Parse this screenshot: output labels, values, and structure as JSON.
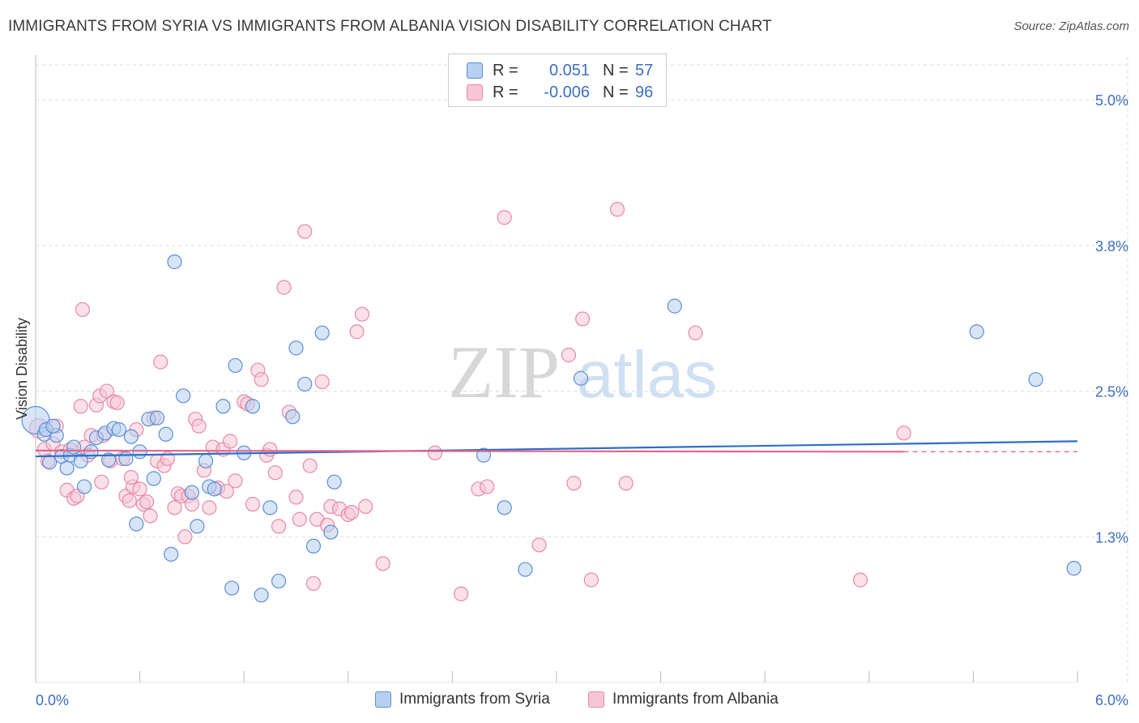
{
  "title": "IMMIGRANTS FROM SYRIA VS IMMIGRANTS FROM ALBANIA VISION DISABILITY CORRELATION CHART",
  "source": "Source: ZipAtlas.com",
  "watermark": {
    "zip": "ZIP",
    "atlas": "atlas"
  },
  "legend": {
    "rows": [
      {
        "r_label": "R =",
        "r_value": "0.051",
        "n_label": "N =",
        "n_value": "57"
      },
      {
        "r_label": "R =",
        "r_value": "-0.006",
        "n_label": "N =",
        "n_value": "96"
      }
    ]
  },
  "bottom_legend": {
    "syria": "Immigrants from Syria",
    "albania": "Immigrants from Albania"
  },
  "colors": {
    "syria_fill": "#b8d0f0",
    "syria_stroke": "#5b8fd6",
    "syria_line": "#2f6ec9",
    "albania_fill": "#f7c6d6",
    "albania_stroke": "#e58aa8",
    "albania_line": "#e0688f",
    "axis_text": "#3d6fc1",
    "grid": "#dddddd"
  },
  "chart_data": {
    "type": "scatter",
    "title": "IMMIGRANTS FROM SYRIA VS IMMIGRANTS FROM ALBANIA VISION DISABILITY CORRELATION CHART",
    "xlabel": "",
    "ylabel": "Vision Disability",
    "xlim": [
      0.0,
      6.0
    ],
    "ylim": [
      0.0,
      5.3
    ],
    "x_tick_labels": [
      {
        "value": 0.0,
        "label": "0.0%"
      },
      {
        "value": 6.0,
        "label": "6.0%"
      }
    ],
    "y_tick_labels": [
      {
        "value": 1.25,
        "label": "1.3%"
      },
      {
        "value": 2.5,
        "label": "2.5%"
      },
      {
        "value": 3.75,
        "label": "3.8%"
      },
      {
        "value": 5.0,
        "label": "5.0%"
      }
    ],
    "grid": true,
    "legend_position": "top-center",
    "series": [
      {
        "name": "Immigrants from Syria",
        "trend": {
          "x": [
            0.0,
            6.0
          ],
          "y": [
            1.94,
            2.07
          ]
        },
        "points": [
          [
            0.0,
            2.25,
            2.0
          ],
          [
            0.05,
            2.13,
            1.0
          ],
          [
            0.08,
            1.89,
            1.0
          ],
          [
            0.12,
            2.12,
            1.0
          ],
          [
            0.15,
            1.94,
            1.0
          ],
          [
            0.18,
            1.84,
            1.0
          ],
          [
            0.2,
            1.95,
            1.0
          ],
          [
            0.22,
            2.02,
            1.0
          ],
          [
            0.26,
            1.9,
            1.0
          ],
          [
            0.28,
            1.68,
            1.0
          ],
          [
            0.32,
            1.98,
            1.0
          ],
          [
            0.35,
            2.1,
            1.0
          ],
          [
            0.4,
            2.14,
            1.0
          ],
          [
            0.42,
            1.91,
            1.0
          ],
          [
            0.45,
            2.18,
            1.0
          ],
          [
            0.48,
            2.17,
            1.0
          ],
          [
            0.52,
            1.92,
            1.0
          ],
          [
            0.55,
            2.11,
            1.0
          ],
          [
            0.58,
            1.36,
            1.0
          ],
          [
            0.6,
            1.98,
            1.0
          ],
          [
            0.65,
            2.26,
            1.0
          ],
          [
            0.68,
            1.75,
            1.0
          ],
          [
            0.7,
            2.27,
            1.0
          ],
          [
            0.75,
            2.13,
            1.0
          ],
          [
            0.78,
            1.1,
            1.0
          ],
          [
            0.8,
            3.61,
            1.0
          ],
          [
            0.85,
            2.46,
            1.0
          ],
          [
            0.9,
            1.63,
            1.0
          ],
          [
            0.93,
            1.34,
            1.0
          ],
          [
            0.98,
            1.9,
            1.0
          ],
          [
            1.0,
            1.68,
            1.0
          ],
          [
            1.03,
            1.66,
            1.0
          ],
          [
            1.08,
            2.37,
            1.0
          ],
          [
            1.13,
            0.81,
            1.0
          ],
          [
            1.15,
            2.72,
            1.0
          ],
          [
            1.2,
            1.97,
            1.0
          ],
          [
            1.25,
            2.37,
            1.0
          ],
          [
            1.3,
            0.75,
            1.0
          ],
          [
            1.35,
            1.5,
            1.0
          ],
          [
            1.4,
            0.87,
            1.0
          ],
          [
            1.48,
            2.28,
            1.0
          ],
          [
            1.5,
            2.87,
            1.0
          ],
          [
            1.55,
            2.56,
            1.0
          ],
          [
            1.6,
            1.17,
            1.0
          ],
          [
            1.65,
            3.0,
            1.0
          ],
          [
            1.7,
            1.29,
            1.0
          ],
          [
            1.72,
            1.72,
            1.0
          ],
          [
            2.58,
            1.95,
            1.0
          ],
          [
            2.7,
            1.5,
            1.0
          ],
          [
            2.82,
            0.97,
            1.0
          ],
          [
            3.14,
            2.61,
            1.0
          ],
          [
            3.68,
            3.23,
            1.0
          ],
          [
            5.42,
            3.01,
            1.0
          ],
          [
            5.76,
            2.6,
            1.0
          ],
          [
            5.98,
            0.98,
            1.0
          ],
          [
            0.06,
            2.17,
            1.0
          ],
          [
            0.1,
            2.2,
            1.0
          ]
        ]
      },
      {
        "name": "Immigrants from Albania",
        "trend": {
          "x": [
            0.0,
            5.0
          ],
          "y": [
            1.99,
            1.98
          ]
        },
        "trend_dashed": {
          "x": [
            5.0,
            6.0
          ],
          "y": [
            1.98,
            1.98
          ]
        },
        "points": [
          [
            0.02,
            2.18,
            1.4
          ],
          [
            0.05,
            2.0,
            1.0
          ],
          [
            0.07,
            1.9,
            1.0
          ],
          [
            0.1,
            2.05,
            1.0
          ],
          [
            0.12,
            2.2,
            1.0
          ],
          [
            0.15,
            1.98,
            1.0
          ],
          [
            0.18,
            1.65,
            1.0
          ],
          [
            0.2,
            2.0,
            1.0
          ],
          [
            0.22,
            1.58,
            1.0
          ],
          [
            0.24,
            1.6,
            1.0
          ],
          [
            0.26,
            2.37,
            1.0
          ],
          [
            0.28,
            2.02,
            1.0
          ],
          [
            0.3,
            1.95,
            1.0
          ],
          [
            0.32,
            2.12,
            1.0
          ],
          [
            0.35,
            2.38,
            1.0
          ],
          [
            0.37,
            2.46,
            1.0
          ],
          [
            0.39,
            2.12,
            1.0
          ],
          [
            0.41,
            2.5,
            1.0
          ],
          [
            0.43,
            1.9,
            1.0
          ],
          [
            0.45,
            2.41,
            1.0
          ],
          [
            0.47,
            2.4,
            1.0
          ],
          [
            0.5,
            1.92,
            1.0
          ],
          [
            0.52,
            1.6,
            1.0
          ],
          [
            0.54,
            1.56,
            1.0
          ],
          [
            0.56,
            1.68,
            1.0
          ],
          [
            0.58,
            2.17,
            1.0
          ],
          [
            0.6,
            1.66,
            1.0
          ],
          [
            0.62,
            1.53,
            1.0
          ],
          [
            0.64,
            1.55,
            1.0
          ],
          [
            0.66,
            1.43,
            1.0
          ],
          [
            0.68,
            2.27,
            1.0
          ],
          [
            0.7,
            1.9,
            1.0
          ],
          [
            0.72,
            2.75,
            1.0
          ],
          [
            0.74,
            1.86,
            1.0
          ],
          [
            0.76,
            1.92,
            1.0
          ],
          [
            0.8,
            1.5,
            1.0
          ],
          [
            0.82,
            1.62,
            1.0
          ],
          [
            0.84,
            1.6,
            1.0
          ],
          [
            0.86,
            1.25,
            1.0
          ],
          [
            0.88,
            1.6,
            1.0
          ],
          [
            0.9,
            1.53,
            1.0
          ],
          [
            0.92,
            2.26,
            1.0
          ],
          [
            0.94,
            2.2,
            1.0
          ],
          [
            0.97,
            1.82,
            1.0
          ],
          [
            1.0,
            1.5,
            1.0
          ],
          [
            1.02,
            2.02,
            1.0
          ],
          [
            1.05,
            1.67,
            1.0
          ],
          [
            1.08,
            2.0,
            1.0
          ],
          [
            1.1,
            1.64,
            1.0
          ],
          [
            1.12,
            2.07,
            1.0
          ],
          [
            1.15,
            1.73,
            1.0
          ],
          [
            1.2,
            2.41,
            1.0
          ],
          [
            1.22,
            2.39,
            1.0
          ],
          [
            1.25,
            1.53,
            1.0
          ],
          [
            1.28,
            2.68,
            1.0
          ],
          [
            1.3,
            2.6,
            1.0
          ],
          [
            1.33,
            1.95,
            1.0
          ],
          [
            1.35,
            2.0,
            1.0
          ],
          [
            1.38,
            1.8,
            1.0
          ],
          [
            1.4,
            1.34,
            1.0
          ],
          [
            1.43,
            3.39,
            1.0
          ],
          [
            1.46,
            2.32,
            1.0
          ],
          [
            1.5,
            1.59,
            1.0
          ],
          [
            1.52,
            1.4,
            1.0
          ],
          [
            1.55,
            3.87,
            1.0
          ],
          [
            1.58,
            1.86,
            1.0
          ],
          [
            1.6,
            0.85,
            1.0
          ],
          [
            1.62,
            1.4,
            1.0
          ],
          [
            1.65,
            2.58,
            1.0
          ],
          [
            1.68,
            1.35,
            1.0
          ],
          [
            1.7,
            1.51,
            1.0
          ],
          [
            1.75,
            1.49,
            1.0
          ],
          [
            1.8,
            1.44,
            1.0
          ],
          [
            1.82,
            1.46,
            1.0
          ],
          [
            1.85,
            3.01,
            1.0
          ],
          [
            1.88,
            3.16,
            1.0
          ],
          [
            1.9,
            1.51,
            1.0
          ],
          [
            2.0,
            1.02,
            1.0
          ],
          [
            2.3,
            1.97,
            1.0
          ],
          [
            2.45,
            0.76,
            1.0
          ],
          [
            2.55,
            1.66,
            1.0
          ],
          [
            2.6,
            1.68,
            1.0
          ],
          [
            2.7,
            3.99,
            1.0
          ],
          [
            2.9,
            1.18,
            1.0
          ],
          [
            3.07,
            2.81,
            1.0
          ],
          [
            3.1,
            1.71,
            1.0
          ],
          [
            3.15,
            3.12,
            1.0
          ],
          [
            3.2,
            0.88,
            1.0
          ],
          [
            3.35,
            4.06,
            1.0
          ],
          [
            3.4,
            1.71,
            1.0
          ],
          [
            3.8,
            3.0,
            1.0
          ],
          [
            4.75,
            0.88,
            1.0
          ],
          [
            5.0,
            2.14,
            1.0
          ],
          [
            0.38,
            1.72,
            1.0
          ],
          [
            0.27,
            3.2,
            1.0
          ],
          [
            0.55,
            1.76,
            1.0
          ]
        ]
      }
    ]
  }
}
